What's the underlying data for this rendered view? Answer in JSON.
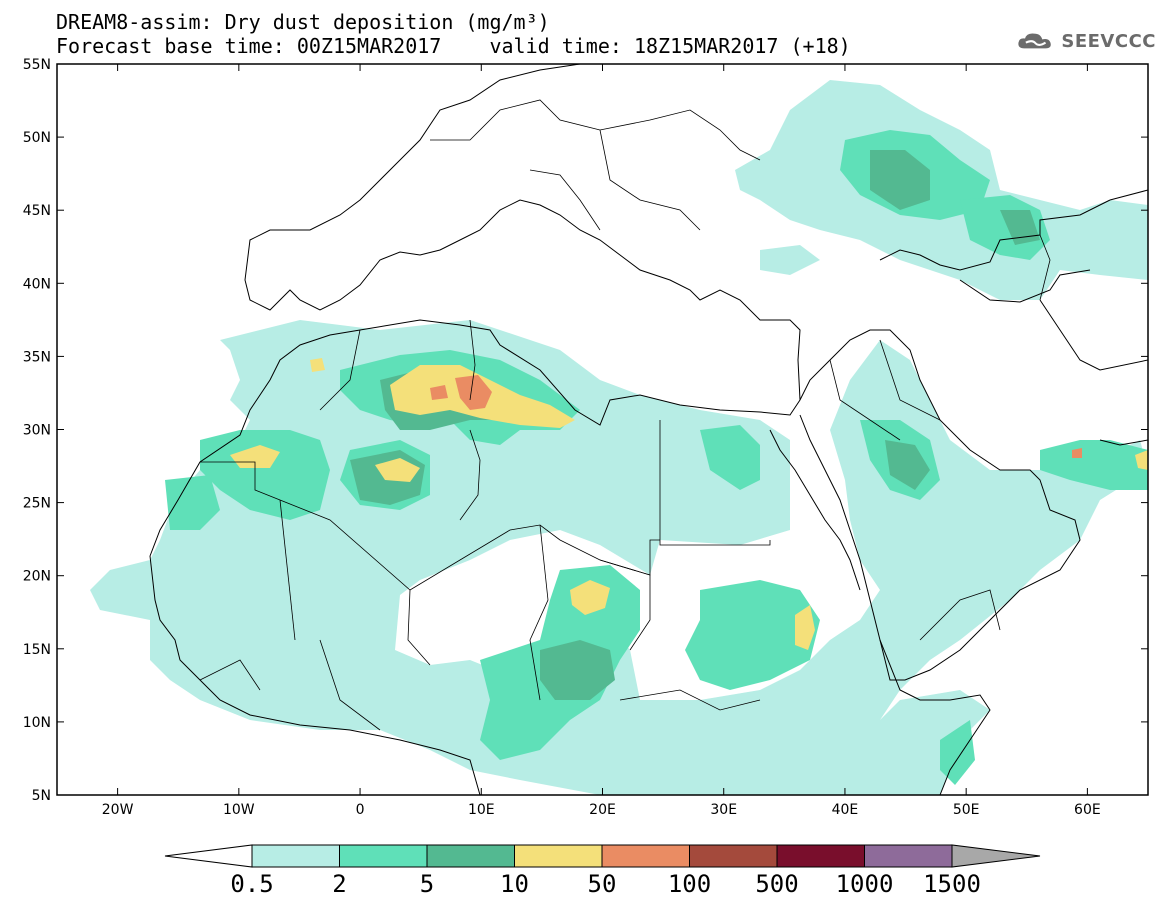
{
  "header": {
    "title_line1": "DREAM8-assim: Dry dust deposition (mg/m³)",
    "title_line2": "Forecast base time: 00Z15MAR2017    valid time: 18Z15MAR2017 (+18)"
  },
  "logo": {
    "icon": "cloud-icon",
    "text": "SEEVCCC",
    "color": "#6b6b6b"
  },
  "map": {
    "lat_labels": [
      "55N",
      "50N",
      "45N",
      "40N",
      "35N",
      "30N",
      "25N",
      "20N",
      "15N",
      "10N",
      "5N"
    ],
    "lon_labels": [
      "20W",
      "10W",
      "0",
      "10E",
      "20E",
      "30E",
      "40E",
      "50E",
      "60E"
    ]
  },
  "colorbar": {
    "labels": [
      "0.5",
      "2",
      "5",
      "10",
      "50",
      "100",
      "500",
      "1000",
      "1500"
    ],
    "colors": [
      "#ffffff",
      "#b7ede5",
      "#5fe0b8",
      "#53b991",
      "#f4e07a",
      "#ea8c63",
      "#a44a3c",
      "#790e2c",
      "#8e6b9a",
      "#a8a8a8"
    ]
  }
}
